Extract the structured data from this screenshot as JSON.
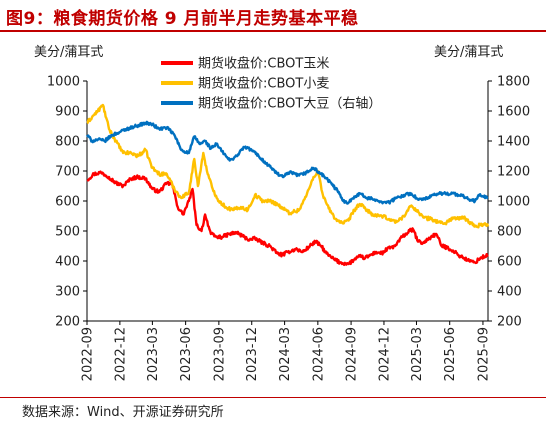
{
  "figure": {
    "title": "图9：粮食期货价格 9 月前半月走势基本平稳",
    "source": "数据来源：Wind、开源证券研究所"
  },
  "chart_data": {
    "type": "line",
    "y_left_label": "美分/蒲耳式",
    "y_right_label": "美分/蒲耳式",
    "y_left_range": [
      200,
      1000
    ],
    "y_left_ticks": [
      "1000",
      "900",
      "800",
      "700",
      "600",
      "500",
      "400",
      "300",
      "200"
    ],
    "y_right_range": [
      200,
      1800
    ],
    "y_right_ticks": [
      "1800",
      "1600",
      "1400",
      "1200",
      "1000",
      "800",
      "600",
      "400",
      "200"
    ],
    "x_range": [
      "2022-09-01",
      "2025-09-15"
    ],
    "x_ticks": [
      "2022-09",
      "2022-12",
      "2023-03",
      "2023-06",
      "2023-09",
      "2023-12",
      "2024-03",
      "2024-06",
      "2024-09",
      "2024-12",
      "2025-03",
      "2025-06",
      "2025-09"
    ],
    "grid": false,
    "legend_position": "top-center",
    "series": [
      {
        "name": "期货收盘价:CBOT玉米",
        "axis": "left",
        "color": "#ff0000",
        "points": [
          [
            "2022-09-01",
            670
          ],
          [
            "2022-09-20",
            690
          ],
          [
            "2022-10-10",
            695
          ],
          [
            "2022-11-01",
            680
          ],
          [
            "2022-11-20",
            660
          ],
          [
            "2022-12-10",
            650
          ],
          [
            "2023-01-01",
            675
          ],
          [
            "2023-01-20",
            680
          ],
          [
            "2023-02-10",
            675
          ],
          [
            "2023-03-01",
            640
          ],
          [
            "2023-03-20",
            630
          ],
          [
            "2023-04-10",
            660
          ],
          [
            "2023-04-25",
            655
          ],
          [
            "2023-05-10",
            580
          ],
          [
            "2023-05-25",
            555
          ],
          [
            "2023-06-10",
            600
          ],
          [
            "2023-06-20",
            640
          ],
          [
            "2023-07-01",
            520
          ],
          [
            "2023-07-15",
            500
          ],
          [
            "2023-07-25",
            555
          ],
          [
            "2023-08-10",
            490
          ],
          [
            "2023-08-25",
            480
          ],
          [
            "2023-09-10",
            480
          ],
          [
            "2023-10-01",
            490
          ],
          [
            "2023-10-20",
            495
          ],
          [
            "2023-11-10",
            480
          ],
          [
            "2023-11-25",
            470
          ],
          [
            "2023-12-10",
            475
          ],
          [
            "2024-01-01",
            460
          ],
          [
            "2024-01-20",
            450
          ],
          [
            "2024-02-10",
            425
          ],
          [
            "2024-02-25",
            420
          ],
          [
            "2024-03-10",
            430
          ],
          [
            "2024-04-01",
            440
          ],
          [
            "2024-04-20",
            430
          ],
          [
            "2024-05-10",
            450
          ],
          [
            "2024-05-25",
            465
          ],
          [
            "2024-06-10",
            450
          ],
          [
            "2024-06-25",
            425
          ],
          [
            "2024-07-10",
            410
          ],
          [
            "2024-08-01",
            395
          ],
          [
            "2024-08-25",
            390
          ],
          [
            "2024-09-10",
            405
          ],
          [
            "2024-09-25",
            415
          ],
          [
            "2024-10-10",
            410
          ],
          [
            "2024-10-25",
            420
          ],
          [
            "2024-11-10",
            430
          ],
          [
            "2024-11-25",
            425
          ],
          [
            "2024-12-10",
            440
          ],
          [
            "2025-01-01",
            450
          ],
          [
            "2025-01-20",
            480
          ],
          [
            "2025-02-10",
            500
          ],
          [
            "2025-02-20",
            505
          ],
          [
            "2025-03-05",
            465
          ],
          [
            "2025-03-20",
            460
          ],
          [
            "2025-04-10",
            480
          ],
          [
            "2025-04-25",
            490
          ],
          [
            "2025-05-10",
            450
          ],
          [
            "2025-05-25",
            445
          ],
          [
            "2025-06-10",
            435
          ],
          [
            "2025-06-25",
            420
          ],
          [
            "2025-07-10",
            410
          ],
          [
            "2025-07-25",
            400
          ],
          [
            "2025-08-10",
            395
          ],
          [
            "2025-08-25",
            410
          ],
          [
            "2025-09-05",
            415
          ],
          [
            "2025-09-15",
            420
          ]
        ]
      },
      {
        "name": "期货收盘价:CBOT小麦",
        "axis": "left",
        "color": "#ffc000",
        "points": [
          [
            "2022-09-01",
            860
          ],
          [
            "2022-09-15",
            880
          ],
          [
            "2022-10-01",
            900
          ],
          [
            "2022-10-15",
            920
          ],
          [
            "2022-11-01",
            840
          ],
          [
            "2022-11-20",
            800
          ],
          [
            "2022-12-10",
            760
          ],
          [
            "2023-01-01",
            760
          ],
          [
            "2023-01-20",
            750
          ],
          [
            "2023-02-10",
            770
          ],
          [
            "2023-03-01",
            710
          ],
          [
            "2023-03-20",
            690
          ],
          [
            "2023-04-10",
            690
          ],
          [
            "2023-05-01",
            640
          ],
          [
            "2023-05-20",
            610
          ],
          [
            "2023-06-10",
            630
          ],
          [
            "2023-06-25",
            740
          ],
          [
            "2023-07-05",
            650
          ],
          [
            "2023-07-20",
            760
          ],
          [
            "2023-08-01",
            690
          ],
          [
            "2023-08-15",
            640
          ],
          [
            "2023-09-01",
            600
          ],
          [
            "2023-09-20",
            580
          ],
          [
            "2023-10-10",
            570
          ],
          [
            "2023-11-01",
            580
          ],
          [
            "2023-11-20",
            570
          ],
          [
            "2023-12-10",
            620
          ],
          [
            "2024-01-01",
            600
          ],
          [
            "2024-01-20",
            600
          ],
          [
            "2024-02-10",
            590
          ],
          [
            "2024-02-25",
            575
          ],
          [
            "2024-03-15",
            560
          ],
          [
            "2024-04-10",
            570
          ],
          [
            "2024-05-01",
            620
          ],
          [
            "2024-05-20",
            680
          ],
          [
            "2024-06-01",
            700
          ],
          [
            "2024-06-15",
            620
          ],
          [
            "2024-07-01",
            575
          ],
          [
            "2024-07-20",
            540
          ],
          [
            "2024-08-10",
            525
          ],
          [
            "2024-08-25",
            535
          ],
          [
            "2024-09-10",
            570
          ],
          [
            "2024-09-25",
            590
          ],
          [
            "2024-10-15",
            570
          ],
          [
            "2024-11-05",
            550
          ],
          [
            "2024-11-25",
            550
          ],
          [
            "2024-12-15",
            540
          ],
          [
            "2025-01-05",
            530
          ],
          [
            "2025-01-25",
            550
          ],
          [
            "2025-02-15",
            585
          ],
          [
            "2025-03-01",
            570
          ],
          [
            "2025-03-20",
            545
          ],
          [
            "2025-04-10",
            540
          ],
          [
            "2025-05-01",
            530
          ],
          [
            "2025-05-20",
            525
          ],
          [
            "2025-06-10",
            545
          ],
          [
            "2025-06-25",
            540
          ],
          [
            "2025-07-10",
            545
          ],
          [
            "2025-07-25",
            530
          ],
          [
            "2025-08-10",
            515
          ],
          [
            "2025-08-25",
            520
          ],
          [
            "2025-09-05",
            525
          ],
          [
            "2025-09-15",
            515
          ]
        ]
      },
      {
        "name": "期货收盘价:CBOT大豆（右轴）",
        "axis": "right",
        "color": "#0070c0",
        "points": [
          [
            "2022-09-01",
            1440
          ],
          [
            "2022-09-15",
            1400
          ],
          [
            "2022-10-01",
            1410
          ],
          [
            "2022-10-20",
            1400
          ],
          [
            "2022-11-10",
            1440
          ],
          [
            "2022-12-01",
            1460
          ],
          [
            "2022-12-20",
            1480
          ],
          [
            "2023-01-15",
            1500
          ],
          [
            "2023-02-10",
            1520
          ],
          [
            "2023-03-01",
            1510
          ],
          [
            "2023-03-20",
            1480
          ],
          [
            "2023-04-10",
            1490
          ],
          [
            "2023-05-01",
            1440
          ],
          [
            "2023-05-20",
            1340
          ],
          [
            "2023-06-10",
            1320
          ],
          [
            "2023-06-25",
            1430
          ],
          [
            "2023-07-10",
            1380
          ],
          [
            "2023-07-25",
            1400
          ],
          [
            "2023-08-10",
            1350
          ],
          [
            "2023-08-25",
            1380
          ],
          [
            "2023-09-10",
            1330
          ],
          [
            "2023-10-01",
            1270
          ],
          [
            "2023-10-20",
            1300
          ],
          [
            "2023-11-10",
            1360
          ],
          [
            "2023-12-01",
            1340
          ],
          [
            "2023-12-20",
            1300
          ],
          [
            "2024-01-10",
            1250
          ],
          [
            "2024-01-25",
            1220
          ],
          [
            "2024-02-10",
            1180
          ],
          [
            "2024-02-25",
            1160
          ],
          [
            "2024-03-15",
            1190
          ],
          [
            "2024-04-10",
            1170
          ],
          [
            "2024-05-01",
            1190
          ],
          [
            "2024-05-20",
            1220
          ],
          [
            "2024-06-10",
            1180
          ],
          [
            "2024-06-25",
            1150
          ],
          [
            "2024-07-10",
            1110
          ],
          [
            "2024-07-25",
            1070
          ],
          [
            "2024-08-10",
            1000
          ],
          [
            "2024-08-25",
            990
          ],
          [
            "2024-09-10",
            1030
          ],
          [
            "2024-09-25",
            1050
          ],
          [
            "2024-10-15",
            1020
          ],
          [
            "2024-11-05",
            1010
          ],
          [
            "2024-11-25",
            995
          ],
          [
            "2024-12-15",
            990
          ],
          [
            "2025-01-05",
            1020
          ],
          [
            "2025-01-25",
            1040
          ],
          [
            "2025-02-15",
            1050
          ],
          [
            "2025-03-05",
            1010
          ],
          [
            "2025-03-20",
            1010
          ],
          [
            "2025-04-10",
            1030
          ],
          [
            "2025-05-01",
            1050
          ],
          [
            "2025-05-20",
            1050
          ],
          [
            "2025-06-10",
            1050
          ],
          [
            "2025-06-25",
            1040
          ],
          [
            "2025-07-10",
            1030
          ],
          [
            "2025-07-25",
            1010
          ],
          [
            "2025-08-10",
            1000
          ],
          [
            "2025-08-20",
            1040
          ],
          [
            "2025-09-01",
            1030
          ],
          [
            "2025-09-15",
            1020
          ]
        ]
      }
    ]
  }
}
